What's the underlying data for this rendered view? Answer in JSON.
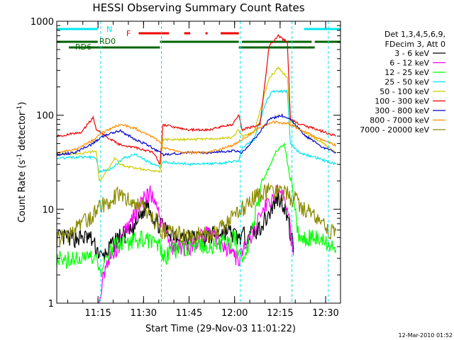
{
  "chart_data": {
    "type": "line",
    "title": "HESSI Observing Summary Count Rates",
    "xlabel": "Start Time (29-Nov-03 11:01:22)",
    "ylabel": "Count Rate (s",
    "ylabel_sup": "-1",
    "ylabel_mid": " detector",
    "ylabel_sup2": "-1",
    "ylabel_end": ")",
    "y_scale": "log",
    "ylim": [
      1,
      1000
    ],
    "xlim_minutes_after_start": [
      0,
      93.5
    ],
    "x_ticks": [
      {
        "label": "11:15",
        "t": 13.6
      },
      {
        "label": "11:30",
        "t": 28.6
      },
      {
        "label": "11:45",
        "t": 43.6
      },
      {
        "label": "12:00",
        "t": 58.6
      },
      {
        "label": "12:15",
        "t": 73.6
      },
      {
        "label": "12:30",
        "t": 88.6
      }
    ],
    "y_ticks": [
      {
        "label": "1",
        "v": 1
      },
      {
        "label": "10",
        "v": 10
      },
      {
        "label": "100",
        "v": 100
      },
      {
        "label": "1000",
        "v": 1000
      }
    ],
    "legend_header": [
      "Det 1,3,4,5,6,9,",
      "FDecim 3, Att 0"
    ],
    "legend_placement": "right",
    "date_stamp": "12-Mar-2010 01:52",
    "flag_labels": {
      "night": "N",
      "flare": "F",
      "rd0": "RD0",
      "rd6": "RD6"
    },
    "flags": {
      "night": {
        "color": "#00e5ee",
        "segments": [
          [
            0,
            13.5
          ],
          [
            81.5,
            93.5
          ]
        ]
      },
      "flare": {
        "color": "#ee0000",
        "segments": [
          [
            27,
            37
          ],
          [
            42,
            44
          ],
          [
            49,
            49.7
          ],
          [
            54,
            60
          ]
        ]
      },
      "rd0": {
        "color": "#006400",
        "segments": [
          [
            0,
            13.5
          ],
          [
            34,
            60
          ],
          [
            61,
            84
          ],
          [
            85,
            93.5
          ]
        ]
      },
      "rd6": {
        "color": "#006400",
        "segments": [
          [
            4,
            34
          ],
          [
            60,
            85
          ]
        ]
      }
    },
    "saa_lines": [
      14.5,
      34.5,
      60.5,
      77.5,
      89.5
    ],
    "series": [
      {
        "name": "3 - 6 keV",
        "color": "#000000",
        "key": [
          [
            0,
            5
          ],
          [
            11,
            5
          ],
          [
            15,
            3
          ],
          [
            20,
            5
          ],
          [
            25,
            6
          ],
          [
            28,
            9
          ],
          [
            30,
            12
          ],
          [
            32,
            8
          ],
          [
            36,
            6
          ],
          [
            42,
            5
          ],
          [
            48,
            5
          ],
          [
            56,
            6
          ],
          [
            60,
            5
          ],
          [
            66,
            6
          ],
          [
            70,
            9
          ],
          [
            73,
            14
          ],
          [
            75,
            11
          ],
          [
            78,
            4
          ]
        ]
      },
      {
        "name": "6 - 12 keV",
        "color": "#ff00ff",
        "key": [
          [
            14,
            1.2
          ],
          [
            16,
            2.5
          ],
          [
            20,
            4
          ],
          [
            24,
            7
          ],
          [
            28,
            12
          ],
          [
            31,
            16
          ],
          [
            34,
            8
          ],
          [
            38,
            4
          ],
          [
            44,
            4
          ],
          [
            50,
            6
          ],
          [
            56,
            4
          ],
          [
            60,
            3
          ],
          [
            66,
            7
          ],
          [
            70,
            13
          ],
          [
            73,
            16
          ],
          [
            76,
            12
          ],
          [
            78,
            3
          ]
        ]
      },
      {
        "name": "12 - 25 keV",
        "color": "#00ff00",
        "key": [
          [
            0,
            3
          ],
          [
            13,
            3
          ],
          [
            14,
            2
          ],
          [
            18,
            4
          ],
          [
            28,
            5
          ],
          [
            34,
            4
          ],
          [
            35,
            3
          ],
          [
            40,
            4
          ],
          [
            50,
            4
          ],
          [
            59,
            5
          ],
          [
            60,
            3
          ],
          [
            63,
            4
          ],
          [
            68,
            20
          ],
          [
            72,
            40
          ],
          [
            75,
            50
          ],
          [
            77,
            20
          ],
          [
            80,
            5
          ],
          [
            86,
            5
          ],
          [
            92,
            4
          ]
        ]
      },
      {
        "name": "25 - 50 keV",
        "color": "#00e5ee",
        "key": [
          [
            0,
            35
          ],
          [
            10,
            36
          ],
          [
            13,
            35
          ],
          [
            14,
            25
          ],
          [
            18,
            27
          ],
          [
            22,
            35
          ],
          [
            26,
            38
          ],
          [
            30,
            32
          ],
          [
            34,
            28
          ],
          [
            35,
            32
          ],
          [
            45,
            30
          ],
          [
            55,
            31
          ],
          [
            60,
            33
          ],
          [
            61,
            45
          ],
          [
            65,
            55
          ],
          [
            69,
            140
          ],
          [
            71,
            180
          ],
          [
            76,
            180
          ],
          [
            77,
            50
          ],
          [
            80,
            40
          ],
          [
            86,
            35
          ],
          [
            92,
            30
          ]
        ]
      },
      {
        "name": "50 - 100 keV",
        "color": "#cccc00",
        "key": [
          [
            0,
            38
          ],
          [
            10,
            40
          ],
          [
            13,
            42
          ],
          [
            14,
            20
          ],
          [
            16,
            24
          ],
          [
            19,
            35
          ],
          [
            21,
            30
          ],
          [
            24,
            28
          ],
          [
            34,
            25
          ],
          [
            35,
            55
          ],
          [
            42,
            55
          ],
          [
            50,
            56
          ],
          [
            58,
            58
          ],
          [
            60,
            70
          ],
          [
            61,
            60
          ],
          [
            65,
            65
          ],
          [
            70,
            250
          ],
          [
            73,
            320
          ],
          [
            76,
            250
          ],
          [
            77,
            80
          ],
          [
            82,
            65
          ],
          [
            88,
            50
          ],
          [
            92,
            40
          ]
        ]
      },
      {
        "name": "100 - 300 keV",
        "color": "#ee0000",
        "key": [
          [
            0,
            60
          ],
          [
            8,
            65
          ],
          [
            12,
            95
          ],
          [
            13,
            70
          ],
          [
            16,
            60
          ],
          [
            20,
            50
          ],
          [
            26,
            45
          ],
          [
            32,
            40
          ],
          [
            34,
            30
          ],
          [
            35,
            80
          ],
          [
            42,
            70
          ],
          [
            50,
            70
          ],
          [
            58,
            80
          ],
          [
            60,
            100
          ],
          [
            61,
            70
          ],
          [
            67,
            80
          ],
          [
            70,
            550
          ],
          [
            73,
            700
          ],
          [
            76,
            600
          ],
          [
            77,
            90
          ],
          [
            80,
            80
          ],
          [
            86,
            70
          ],
          [
            92,
            60
          ]
        ]
      },
      {
        "name": "300 - 800 keV",
        "color": "#0000cd",
        "key": [
          [
            0,
            38
          ],
          [
            6,
            40
          ],
          [
            11,
            48
          ],
          [
            16,
            62
          ],
          [
            21,
            68
          ],
          [
            26,
            55
          ],
          [
            30,
            48
          ],
          [
            34,
            40
          ],
          [
            35,
            38
          ],
          [
            42,
            40
          ],
          [
            50,
            40
          ],
          [
            58,
            42
          ],
          [
            61,
            40
          ],
          [
            66,
            60
          ],
          [
            70,
            90
          ],
          [
            74,
            100
          ],
          [
            77,
            90
          ],
          [
            82,
            60
          ],
          [
            88,
            45
          ],
          [
            92,
            40
          ]
        ]
      },
      {
        "name": "800 - 7000 keV",
        "color": "#ff8c00",
        "key": [
          [
            0,
            40
          ],
          [
            6,
            43
          ],
          [
            11,
            52
          ],
          [
            16,
            68
          ],
          [
            21,
            80
          ],
          [
            26,
            72
          ],
          [
            31,
            60
          ],
          [
            34,
            52
          ],
          [
            35,
            45
          ],
          [
            42,
            40
          ],
          [
            50,
            40
          ],
          [
            58,
            48
          ],
          [
            61,
            55
          ],
          [
            66,
            72
          ],
          [
            71,
            85
          ],
          [
            76,
            82
          ],
          [
            81,
            68
          ],
          [
            87,
            55
          ],
          [
            92,
            48
          ]
        ]
      },
      {
        "name": "7000 - 20000 keV",
        "color": "#8b8b00",
        "key": [
          [
            0,
            5
          ],
          [
            6,
            6
          ],
          [
            11,
            8.5
          ],
          [
            16,
            12
          ],
          [
            20,
            14
          ],
          [
            24,
            13
          ],
          [
            28,
            11
          ],
          [
            32,
            8
          ],
          [
            35,
            6
          ],
          [
            42,
            5.2
          ],
          [
            50,
            5.5
          ],
          [
            56,
            7
          ],
          [
            61,
            10
          ],
          [
            66,
            14
          ],
          [
            71,
            16
          ],
          [
            76,
            15
          ],
          [
            81,
            11
          ],
          [
            87,
            7
          ],
          [
            92,
            5.5
          ]
        ]
      }
    ]
  }
}
